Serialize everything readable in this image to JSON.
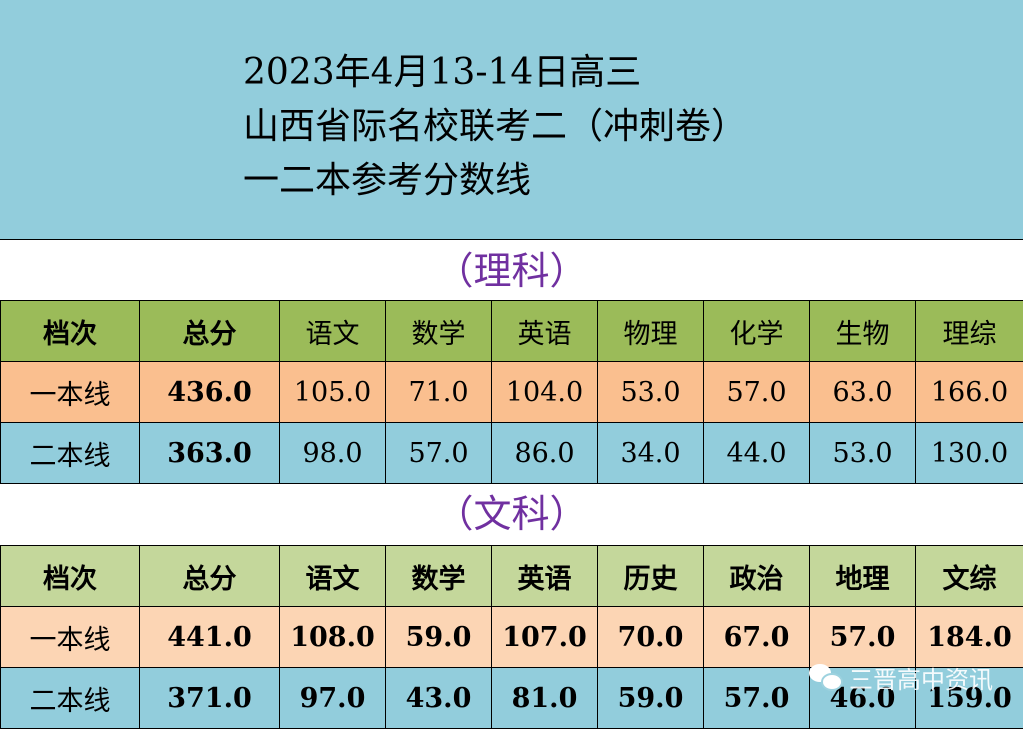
{
  "title": [
    "2023年4月13-14日高三",
    "山西省际名校联考二（冲刺卷）",
    "一二本参考分数线"
  ],
  "colors": {
    "title_bg": "#92CDDC",
    "li_header": "#9BBB59",
    "li_row1": "#FABF8F",
    "row2": "#92CDDC",
    "wen_header": "#C4D79B",
    "wen_row1": "#FCD5B4",
    "section_text": "#7030A0"
  },
  "li": {
    "label": "（理科）",
    "headers": [
      "档次",
      "总分",
      "语文",
      "数学",
      "英语",
      "物理",
      "化学",
      "生物",
      "理综"
    ],
    "rows": [
      [
        "一本线",
        "436.0",
        "105.0",
        "71.0",
        "104.0",
        "53.0",
        "57.0",
        "63.0",
        "166.0"
      ],
      [
        "二本线",
        "363.0",
        "98.0",
        "57.0",
        "86.0",
        "34.0",
        "44.0",
        "53.0",
        "130.0"
      ]
    ]
  },
  "wen": {
    "label": "（文科）",
    "headers": [
      "档次",
      "总分",
      "语文",
      "数学",
      "英语",
      "历史",
      "政治",
      "地理",
      "文综"
    ],
    "rows": [
      [
        "一本线",
        "441.0",
        "108.0",
        "59.0",
        "107.0",
        "70.0",
        "67.0",
        "57.0",
        "184.0"
      ],
      [
        "二本线",
        "371.0",
        "97.0",
        "43.0",
        "81.0",
        "59.0",
        "57.0",
        "46.0",
        "159.0"
      ]
    ]
  },
  "watermark": {
    "icon": "wechat-icon",
    "text": "三晋高中资讯"
  }
}
